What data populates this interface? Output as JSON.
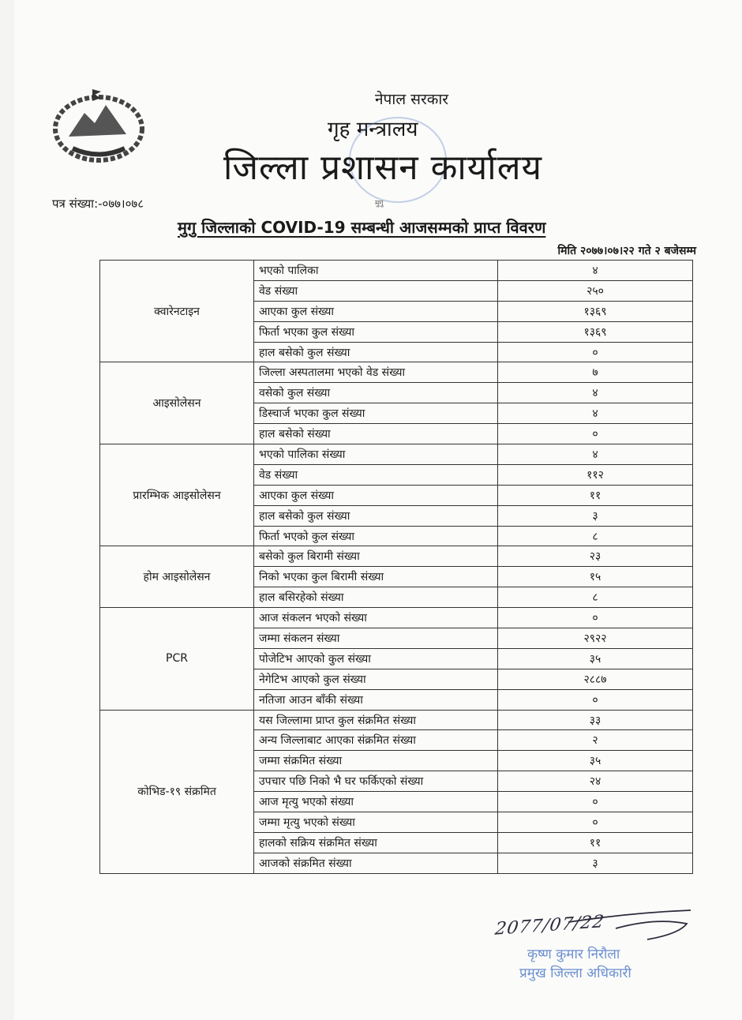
{
  "header": {
    "government": "नेपाल सरकार",
    "ministry": "गृह मन्त्रालय",
    "office": "जिल्ला प्रशासन कार्यालय",
    "letter_number": "पत्र संख्या:-०७७।०७८",
    "location": "मुगु",
    "title": "मुगु जिल्लाको COVID-19 सम्बन्धी आजसम्मको प्राप्त विवरण",
    "date": "मिति २०७७।०७।२२ गते २ बजेसम्म"
  },
  "table": {
    "groups": [
      {
        "category": "क्वारेनटाइन",
        "rows": [
          {
            "label": "भएको पालिका",
            "value": "४"
          },
          {
            "label": "वेड संख्या",
            "value": "२५०"
          },
          {
            "label": "आएका कुल संख्या",
            "value": "१३६९"
          },
          {
            "label": "फिर्ता भएका कुल संख्या",
            "value": "१३६९"
          },
          {
            "label": "हाल बसेको कुल संख्या",
            "value": "०"
          }
        ]
      },
      {
        "category": "आइसोलेसन",
        "rows": [
          {
            "label": "जिल्ला अस्पतालमा भएको वेड संख्या",
            "value": "७"
          },
          {
            "label": "वसेको कुल संख्या",
            "value": "४"
          },
          {
            "label": "डिस्चार्ज भएका कुल संख्या",
            "value": "४"
          },
          {
            "label": "हाल बसेको संख्या",
            "value": "०"
          }
        ]
      },
      {
        "category": "प्रारम्भिक आइसोलेसन",
        "rows": [
          {
            "label": "भएको पालिका संख्या",
            "value": "४"
          },
          {
            "label": "वेड संख्या",
            "value": "११२"
          },
          {
            "label": "आएका कुल संख्या",
            "value": "११"
          },
          {
            "label": "हाल बसेको कुल संख्या",
            "value": "३"
          },
          {
            "label": "फिर्ता भएको कुल संख्या",
            "value": "८"
          }
        ]
      },
      {
        "category": "होम आइसोलेसन",
        "rows": [
          {
            "label": "बसेको कुल बिरामी संख्या",
            "value": "२३"
          },
          {
            "label": "निको भएका कुल बिरामी संख्या",
            "value": "१५"
          },
          {
            "label": "हाल बसिरहेको संख्या",
            "value": "८"
          }
        ]
      },
      {
        "category": "PCR",
        "rows": [
          {
            "label": "आज संकलन भएको संख्या",
            "value": "०"
          },
          {
            "label": "जम्मा संकलन संख्या",
            "value": "२९२२"
          },
          {
            "label": "पोजेटिभ आएको कुल संख्या",
            "value": "३५"
          },
          {
            "label": "नेगेटिभ आएको कुल संख्या",
            "value": "२८८७"
          },
          {
            "label": "नतिजा आउन बाँकी संख्या",
            "value": "०"
          }
        ]
      },
      {
        "category": "कोभिड-१९ संक्रमित",
        "rows": [
          {
            "label": "यस जिल्लामा प्राप्त कुल संक्रमित संख्या",
            "value": "३३"
          },
          {
            "label": "अन्य जिल्लाबाट आएका संक्रमित संख्या",
            "value": "२"
          },
          {
            "label": "जम्मा संक्रमित संख्या",
            "value": "३५"
          },
          {
            "label": "उपचार पछि निको भै घर फर्किएको संख्या",
            "value": "२४"
          },
          {
            "label": "आज मृत्यु भएको संख्या",
            "value": "०"
          },
          {
            "label": "जम्मा मृत्यु भएको संख्या",
            "value": "०"
          },
          {
            "label": "हालको सक्रिय संक्रमित संख्या",
            "value": "११"
          },
          {
            "label": "आजको संक्रमित संख्या",
            "value": "३"
          }
        ]
      }
    ]
  },
  "signature": {
    "handwritten_date": "2077/07/22",
    "name": "कृष्ण कुमार निरौला",
    "title": "प्रमुख जिल्ला अधिकारी",
    "ink_color": "#6b8fd0"
  }
}
